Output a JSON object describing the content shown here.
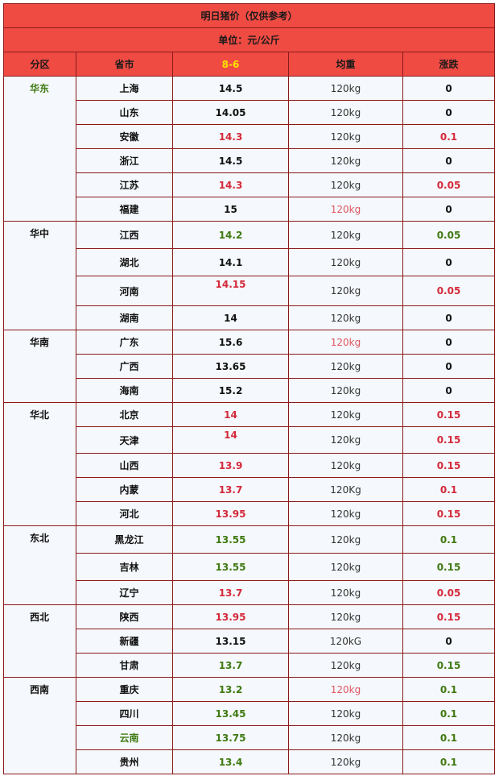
{
  "table": {
    "title": "明日猪价（仅供参考）",
    "unit": "单位：元/公斤",
    "headers": {
      "region": "分区",
      "province": "省市",
      "date": "8-6",
      "weight": "均重",
      "change": "涨跌"
    },
    "colors": {
      "header_bg": "#ef4b43",
      "border": "#8b1a1a",
      "date_text": "#ffe400",
      "red_text": "#d42a3a",
      "green_text": "#3f7a12",
      "row_bg": "#f5f8fc"
    },
    "regions": [
      {
        "name": "华东",
        "rows": [
          {
            "province": "上海",
            "price": "14.5",
            "weight": "120kg",
            "change": "0"
          },
          {
            "province": "山东",
            "price": "14.05",
            "weight": "120kg",
            "change": "0"
          },
          {
            "province": "安徽",
            "price": "14.3",
            "weight": "120kg",
            "change": "0.1"
          },
          {
            "province": "浙江",
            "price": "14.5",
            "weight": "120kg",
            "change": "0"
          },
          {
            "province": "江苏",
            "price": "14.3",
            "weight": "120kg",
            "change": "0.05"
          },
          {
            "province": "福建",
            "price": "15",
            "weight": "120kg",
            "change": "0"
          }
        ]
      },
      {
        "name": "华中",
        "rows": [
          {
            "province": "江西",
            "price": "14.2",
            "weight": "120kg",
            "change": "0.05"
          },
          {
            "province": "湖北",
            "price": "14.1",
            "weight": "120kg",
            "change": "0"
          },
          {
            "province": "河南",
            "price": "14.15",
            "weight": "120kg",
            "change": "0.05"
          },
          {
            "province": "湖南",
            "price": "14",
            "weight": "120kg",
            "change": "0"
          }
        ]
      },
      {
        "name": "华南",
        "rows": [
          {
            "province": "广东",
            "price": "15.6",
            "weight": "120kg",
            "change": "0"
          },
          {
            "province": "广西",
            "price": "13.65",
            "weight": "120kg",
            "change": "0"
          },
          {
            "province": "海南",
            "price": "15.2",
            "weight": "120kg",
            "change": "0"
          }
        ]
      },
      {
        "name": "华北",
        "rows": [
          {
            "province": "北京",
            "price": "14",
            "weight": "120kg",
            "change": "0.15"
          },
          {
            "province": "天津",
            "price": "14",
            "weight": "120kg",
            "change": "0.15"
          },
          {
            "province": "山西",
            "price": "13.9",
            "weight": "120kg",
            "change": "0.15"
          },
          {
            "province": "内蒙",
            "price": "13.7",
            "weight": "120Kg",
            "change": "0.1"
          },
          {
            "province": "河北",
            "price": "13.95",
            "weight": "120kg",
            "change": "0.15"
          }
        ]
      },
      {
        "name": "东北",
        "rows": [
          {
            "province": "黑龙江",
            "price": "13.55",
            "weight": "120kg",
            "change": "0.1"
          },
          {
            "province": "吉林",
            "price": "13.55",
            "weight": "120kg",
            "change": "0.15"
          },
          {
            "province": "辽宁",
            "price": "13.7",
            "weight": "120kg",
            "change": "0.05"
          }
        ]
      },
      {
        "name": "西北",
        "rows": [
          {
            "province": "陕西",
            "price": "13.95",
            "weight": "120kg",
            "change": "0.15"
          },
          {
            "province": "新疆",
            "price": "13.15",
            "weight": "120kG",
            "change": "0"
          },
          {
            "province": "甘肃",
            "price": "13.7",
            "weight": "120kg",
            "change": "0.15"
          }
        ]
      },
      {
        "name": "西南",
        "rows": [
          {
            "province": "重庆",
            "price": "13.2",
            "weight": "120kg",
            "change": "0.1"
          },
          {
            "province": "四川",
            "price": "13.45",
            "weight": "120kg",
            "change": "0.1"
          },
          {
            "province": "云南",
            "price": "13.75",
            "weight": "120kg",
            "change": "0.1"
          },
          {
            "province": "贵州",
            "price": "13.4",
            "weight": "120kg",
            "change": "0.1"
          }
        ]
      }
    ]
  }
}
